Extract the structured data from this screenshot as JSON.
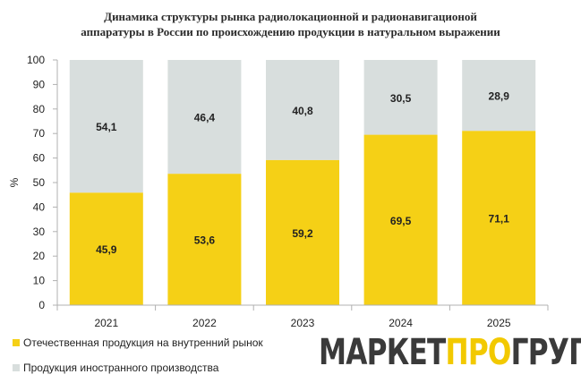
{
  "title_lines": [
    "Динамика структуры рынка радиолокационной и радионавигационой",
    "аппаратуры  в России по происхождению продукции  в натуральном выражении"
  ],
  "colors": {
    "domestic": "#f5d016",
    "foreign": "#d8dedd",
    "axis": "#b0b0b0",
    "text": "#222222"
  },
  "legend": [
    {
      "label": "Отечественная продукция на внутренний рынок",
      "color": "#f5d016"
    },
    {
      "label": "Продукция иностранного производства",
      "color": "#d8dedd"
    }
  ],
  "logo": {
    "part1": "МАРКЕТ",
    "part2": "ПРО",
    "part3": "ГРУП"
  },
  "chart_data": {
    "type": "bar",
    "stacked": true,
    "title": "Динамика структуры рынка радиолокационной и радионавигационой аппаратуры  в России по происхождению продукции  в натуральном выражении",
    "ylabel": "%",
    "xlabel": "",
    "ylim": [
      0,
      100
    ],
    "yticks": [
      0,
      10,
      20,
      30,
      40,
      50,
      60,
      70,
      80,
      90,
      100
    ],
    "categories": [
      "2021",
      "2022",
      "2023",
      "2024",
      "2025"
    ],
    "series": [
      {
        "name": "Отечественная продукция на внутренний рынок",
        "values": [
          45.9,
          53.6,
          59.2,
          69.5,
          71.1
        ],
        "labels": [
          "45,9",
          "53,6",
          "59,2",
          "69,5",
          "71,1"
        ],
        "color": "#f5d016"
      },
      {
        "name": "Продукция иностранного производства",
        "values": [
          54.1,
          46.4,
          40.8,
          30.5,
          28.9
        ],
        "labels": [
          "54,1",
          "46,4",
          "40,8",
          "30,5",
          "28,9"
        ],
        "color": "#d8dedd"
      }
    ],
    "grid": false,
    "legend_position": "bottom-left"
  }
}
